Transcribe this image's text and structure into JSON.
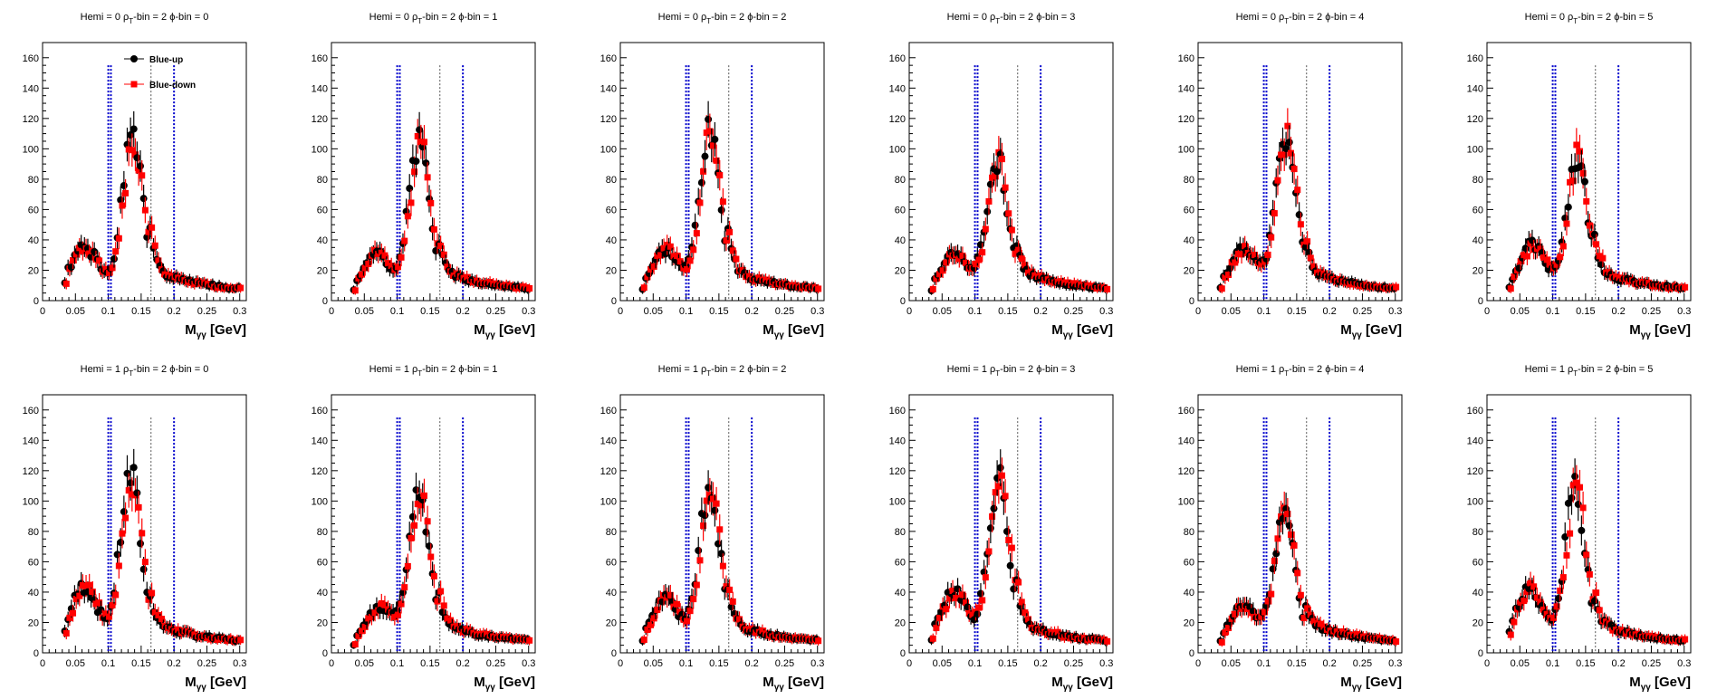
{
  "chart_data": {
    "type": "scatter",
    "xlim": [
      0,
      0.31
    ],
    "ylim": [
      0,
      170
    ],
    "x_ticks": [
      "0",
      "0.05",
      "0.1",
      "0.15",
      "0.2",
      "0.25",
      "0.3"
    ],
    "y_ticks": [
      "0",
      "20",
      "40",
      "60",
      "80",
      "100",
      "120",
      "140",
      "160"
    ],
    "x_tick_values": [
      0,
      0.05,
      0.1,
      0.15,
      0.2,
      0.25,
      0.3
    ],
    "y_tick_values": [
      0,
      20,
      40,
      60,
      80,
      100,
      120,
      140,
      160
    ],
    "xlabel_main": "M",
    "xlabel_sub": "γγ",
    "xlabel_unit": " [GeV]",
    "legend": {
      "placement": "top-left",
      "entries": [
        "Blue-up",
        "Blue-down"
      ]
    },
    "colors": {
      "blue_up": "#000000",
      "blue_down": "#ff0000",
      "blue_lines": "#0000cc",
      "gray_lines": "#555555"
    },
    "vlines": {
      "blue": [
        0.1,
        0.104,
        0.2
      ],
      "gray": [
        0.165
      ]
    },
    "x_grid": [
      0.035,
      0.04,
      0.045,
      0.05,
      0.055,
      0.06,
      0.065,
      0.07,
      0.075,
      0.08,
      0.085,
      0.09,
      0.095,
      0.1,
      0.105,
      0.11,
      0.115,
      0.12,
      0.125,
      0.13,
      0.135,
      0.14,
      0.145,
      0.15,
      0.155,
      0.16,
      0.165,
      0.17,
      0.175,
      0.18,
      0.185,
      0.19,
      0.195,
      0.2,
      0.205,
      0.21,
      0.215,
      0.22,
      0.225,
      0.23,
      0.235,
      0.24,
      0.245,
      0.25,
      0.255,
      0.26,
      0.265,
      0.27,
      0.275,
      0.28,
      0.285,
      0.29,
      0.295,
      0.3
    ],
    "panels": [
      {
        "title": {
          "pre": "Hemi = 0 ρ",
          "sub": "T",
          "post": "-bin = 2  ϕ-bin = 0"
        },
        "peak": 0.138,
        "height": 100,
        "shoulder": 30,
        "shoulder_pos": 0.065,
        "noise": 0.12,
        "seed": 1
      },
      {
        "title": {
          "pre": "Hemi = 0 ρ",
          "sub": "T",
          "post": "-bin = 2  ϕ-bin = 1"
        },
        "peak": 0.135,
        "height": 100,
        "shoulder": 25,
        "shoulder_pos": 0.07,
        "noise": 0.1,
        "seed": 2
      },
      {
        "title": {
          "pre": "Hemi = 0 ρ",
          "sub": "T",
          "post": "-bin = 2  ϕ-bin = 2"
        },
        "peak": 0.137,
        "height": 105,
        "shoulder": 28,
        "shoulder_pos": 0.07,
        "noise": 0.1,
        "seed": 3
      },
      {
        "title": {
          "pre": "Hemi = 0 ρ",
          "sub": "T",
          "post": "-bin = 2  ϕ-bin = 3"
        },
        "peak": 0.135,
        "height": 88,
        "shoulder": 25,
        "shoulder_pos": 0.07,
        "noise": 0.1,
        "seed": 4
      },
      {
        "title": {
          "pre": "Hemi = 0 ρ",
          "sub": "T",
          "post": "-bin = 2  ϕ-bin = 4"
        },
        "peak": 0.135,
        "height": 102,
        "shoulder": 28,
        "shoulder_pos": 0.07,
        "noise": 0.1,
        "seed": 5
      },
      {
        "title": {
          "pre": "Hemi = 0 ρ",
          "sub": "T",
          "post": "-bin = 2  ϕ-bin = 5"
        },
        "peak": 0.138,
        "height": 88,
        "shoulder": 30,
        "shoulder_pos": 0.07,
        "noise": 0.12,
        "seed": 6
      },
      {
        "title": {
          "pre": "Hemi = 1 ρ",
          "sub": "T",
          "post": "-bin = 2  ϕ-bin = 0"
        },
        "peak": 0.135,
        "height": 110,
        "shoulder": 38,
        "shoulder_pos": 0.065,
        "noise": 0.12,
        "seed": 7
      },
      {
        "title": {
          "pre": "Hemi = 1 ρ",
          "sub": "T",
          "post": "-bin = 2  ϕ-bin = 1"
        },
        "peak": 0.135,
        "height": 97,
        "shoulder": 25,
        "shoulder_pos": 0.075,
        "noise": 0.1,
        "seed": 8
      },
      {
        "title": {
          "pre": "Hemi = 1 ρ",
          "sub": "T",
          "post": "-bin = 2  ϕ-bin = 2"
        },
        "peak": 0.137,
        "height": 102,
        "shoulder": 30,
        "shoulder_pos": 0.07,
        "noise": 0.1,
        "seed": 9
      },
      {
        "title": {
          "pre": "Hemi = 1 ρ",
          "sub": "T",
          "post": "-bin = 2  ϕ-bin = 3"
        },
        "peak": 0.137,
        "height": 105,
        "shoulder": 35,
        "shoulder_pos": 0.07,
        "noise": 0.12,
        "seed": 10
      },
      {
        "title": {
          "pre": "Hemi = 1 ρ",
          "sub": "T",
          "post": "-bin = 2  ϕ-bin = 4"
        },
        "peak": 0.132,
        "height": 85,
        "shoulder": 25,
        "shoulder_pos": 0.07,
        "noise": 0.1,
        "seed": 11
      },
      {
        "title": {
          "pre": "Hemi = 1 ρ",
          "sub": "T",
          "post": "-bin = 2  ϕ-bin = 5"
        },
        "peak": 0.135,
        "height": 100,
        "shoulder": 35,
        "shoulder_pos": 0.065,
        "noise": 0.12,
        "seed": 12
      }
    ]
  }
}
